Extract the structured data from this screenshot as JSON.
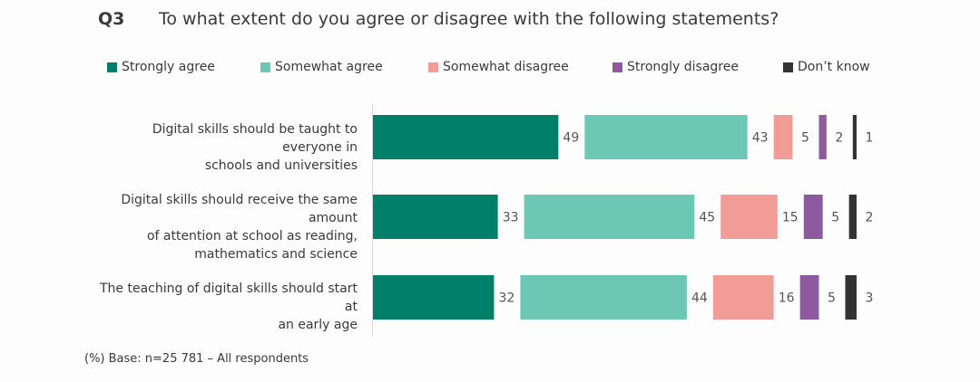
{
  "header": {
    "question_id": "Q3",
    "question_text": "To what extent do you agree or disagree with the following statements?"
  },
  "footer": {
    "base_note": "(%) Base: n=25 781 – All respondents"
  },
  "chart_data": {
    "type": "bar",
    "orientation": "horizontal",
    "stacked": false,
    "title": "To what extent do you agree or disagree with the following statements?",
    "unit": "%",
    "categories": [
      [
        "Digital skills should be taught to everyone in",
        "schools and universities"
      ],
      [
        "Digital skills should receive the same amount",
        "of attention at school as reading,",
        "mathematics and science"
      ],
      [
        "The teaching of digital skills should start at",
        "an early age"
      ]
    ],
    "series": [
      {
        "name": "Strongly agree",
        "color": "#00806a",
        "values": [
          49,
          33,
          32
        ]
      },
      {
        "name": "Somewhat agree",
        "color": "#6cc8b4",
        "values": [
          43,
          45,
          44
        ]
      },
      {
        "name": "Somewhat disagree",
        "color": "#f29c98",
        "values": [
          5,
          15,
          16
        ]
      },
      {
        "name": "Strongly disagree",
        "color": "#8e5a9f",
        "values": [
          2,
          5,
          5
        ]
      },
      {
        "name": "Don’t know",
        "color": "#333333",
        "values": [
          1,
          2,
          3
        ]
      }
    ],
    "legend_position": "top"
  }
}
